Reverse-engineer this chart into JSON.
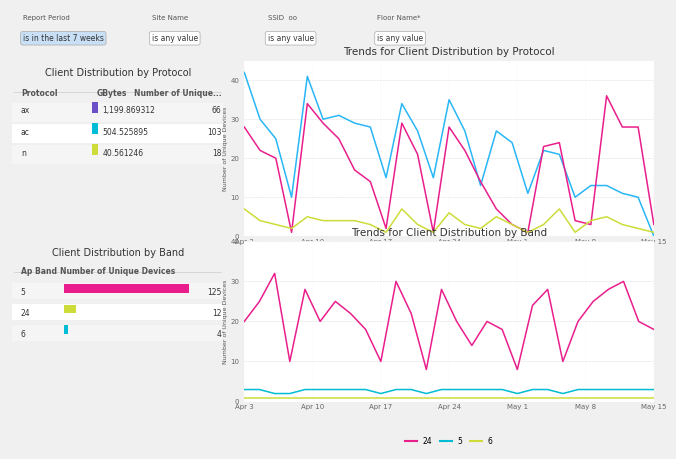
{
  "title_top": "Trends for Client Distribution by Protocol",
  "title_bottom": "Trends for Client Distribution by Band",
  "table1_title": "Client Distribution by Protocol",
  "table2_title": "Client Distribution by Band",
  "table1_rows": [
    [
      "ax",
      "1,199.869312",
      "66"
    ],
    [
      "ac",
      "504.525895",
      "103"
    ],
    [
      "n",
      "40.561246",
      "18"
    ]
  ],
  "table1_colors": [
    "#6a4fc8",
    "#00bcd4",
    "#cddc39"
  ],
  "table2_rows": [
    [
      "5",
      "125"
    ],
    [
      "24",
      "12"
    ],
    [
      "6",
      "4"
    ]
  ],
  "table2_bar_colors": [
    "#e91e8c",
    "#cddc39",
    "#00bcd4"
  ],
  "table2_values": [
    125,
    12,
    4
  ],
  "x_labels_protocol": [
    "Apr 3",
    "Apr 10",
    "Apr 17",
    "Apr 24",
    "May 1",
    "May 8",
    "May 15"
  ],
  "x_labels_band": [
    "Apr 3",
    "Apr 10",
    "Apr 17",
    "Apr 24",
    "May 1",
    "May 8",
    "May 15"
  ],
  "protocol_ylim": [
    0,
    45
  ],
  "protocol_yticks": [
    0,
    10,
    20,
    30,
    40
  ],
  "band_ylim": [
    0,
    40
  ],
  "band_yticks": [
    0,
    10,
    20,
    30,
    40
  ],
  "ac_color": "#29b6f6",
  "ax_color": "#e91e8c",
  "n_color": "#cddc39",
  "band24_color": "#e91e8c",
  "band5_color": "#00bcd4",
  "band6_color": "#cddc39",
  "ac_data": [
    42,
    30,
    25,
    10,
    41,
    30,
    31,
    29,
    28,
    15,
    34,
    27,
    15,
    35,
    27,
    13,
    27,
    24,
    11,
    22,
    21,
    10,
    13,
    13,
    11,
    10,
    0
  ],
  "ax_data": [
    28,
    22,
    20,
    1,
    34,
    29,
    25,
    17,
    14,
    2,
    29,
    21,
    1,
    28,
    22,
    14,
    7,
    3,
    1,
    23,
    24,
    4,
    3,
    36,
    28,
    28,
    3
  ],
  "n_data": [
    7,
    4,
    3,
    2,
    5,
    4,
    4,
    4,
    3,
    1,
    7,
    3,
    1,
    6,
    3,
    2,
    5,
    3,
    1,
    3,
    7,
    1,
    4,
    5,
    3,
    2,
    1
  ],
  "band24_data": [
    20,
    25,
    32,
    10,
    28,
    20,
    25,
    22,
    18,
    10,
    30,
    22,
    8,
    28,
    20,
    14,
    20,
    18,
    8,
    24,
    28,
    10,
    20,
    25,
    28,
    30,
    20,
    18
  ],
  "band5_data": [
    3,
    3,
    2,
    2,
    3,
    3,
    3,
    3,
    3,
    2,
    3,
    3,
    2,
    3,
    3,
    3,
    3,
    3,
    2,
    3,
    3,
    2,
    3,
    3,
    3,
    3,
    3,
    3
  ],
  "band6_data": [
    1,
    1,
    1,
    1,
    1,
    1,
    1,
    1,
    1,
    1,
    1,
    1,
    1,
    1,
    1,
    1,
    1,
    1,
    1,
    1,
    1,
    1,
    1,
    1,
    1,
    1,
    1,
    1
  ],
  "filter_labels": [
    "Report Period",
    "Site Name",
    "SSID  oo",
    "Floor Name*"
  ],
  "filter_values": [
    "is in the last 7 weeks",
    "is any value",
    "is any value",
    "is any value"
  ],
  "bg_color": "#f0f0f0",
  "panel_bg": "#ffffff"
}
